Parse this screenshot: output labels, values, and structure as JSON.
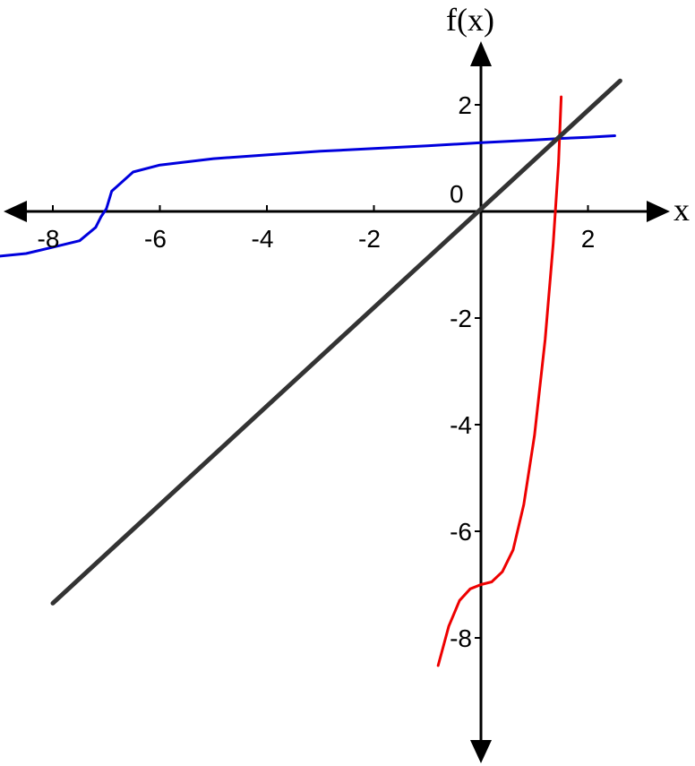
{
  "chart_data": {
    "type": "line",
    "xlabel": "x",
    "ylabel": "f(x)",
    "xlim": [
      -9,
      3.2
    ],
    "ylim": [
      -10,
      3
    ],
    "x_ticks": [
      -8,
      -6,
      -4,
      -2,
      2
    ],
    "x_tick_labels": [
      "-8",
      "-6",
      "-4",
      "-2",
      "2"
    ],
    "y_ticks": [
      2,
      -2,
      -4,
      -6,
      -8
    ],
    "y_tick_labels": [
      "2",
      "-2",
      "-4",
      "-6",
      "-8"
    ],
    "origin_label": "0",
    "grid": false,
    "series": [
      {
        "color": "#0000dd",
        "points": [
          [
            -9,
            -0.84
          ],
          [
            -8.5,
            -0.79
          ],
          [
            -8,
            -0.67
          ],
          [
            -7.5,
            -0.55
          ],
          [
            -7.2,
            -0.3
          ],
          [
            -7.1,
            -0.1
          ],
          [
            -7,
            0.05
          ],
          [
            -6.9,
            0.38
          ],
          [
            -6.5,
            0.74
          ],
          [
            -6,
            0.87
          ],
          [
            -5,
            0.99
          ],
          [
            -4,
            1.06
          ],
          [
            -3,
            1.13
          ],
          [
            -2,
            1.18
          ],
          [
            -1,
            1.23
          ],
          [
            0,
            1.29
          ],
          [
            1,
            1.34
          ],
          [
            1.5,
            1.37
          ],
          [
            2,
            1.39
          ],
          [
            2.5,
            1.42
          ]
        ]
      },
      {
        "color": "#ee0000",
        "points": [
          [
            -0.8,
            -8.52
          ],
          [
            -0.6,
            -7.78
          ],
          [
            -0.4,
            -7.3
          ],
          [
            -0.2,
            -7.08
          ],
          [
            0,
            -7
          ],
          [
            0.2,
            -6.95
          ],
          [
            0.4,
            -6.76
          ],
          [
            0.6,
            -6.35
          ],
          [
            0.8,
            -5.5
          ],
          [
            1,
            -4.2
          ],
          [
            1.2,
            -2.4
          ],
          [
            1.35,
            -0.6
          ],
          [
            1.45,
            0.9
          ],
          [
            1.5,
            2.15
          ]
        ]
      },
      {
        "color": "#333333",
        "points": [
          [
            -8,
            -7.35
          ],
          [
            2.6,
            2.45
          ]
        ]
      }
    ]
  }
}
